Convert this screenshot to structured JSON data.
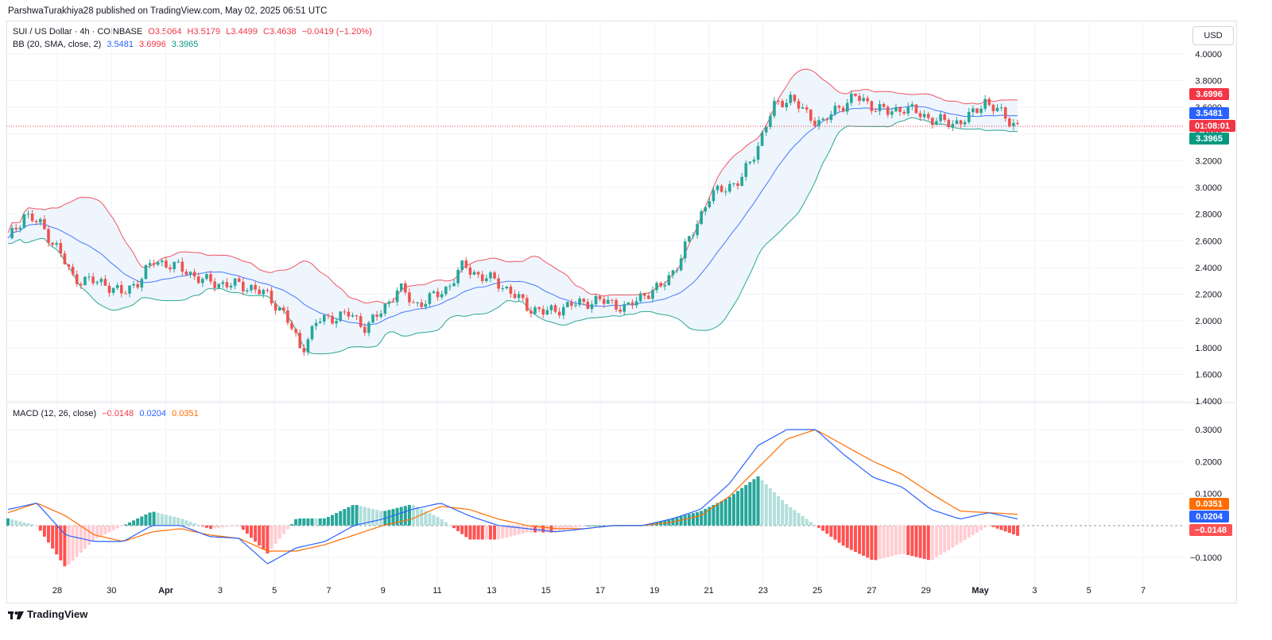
{
  "header": {
    "publisher_line": "ParshwaTurakhiya28 published on TradingView.com, May 02, 2025 06:51 UTC"
  },
  "legend": {
    "symbol": "SUI / US Dollar · 4h · COINBASE",
    "open": "O3.5064",
    "high": "H3.5179",
    "low": "L3.4499",
    "close": "C3.4638",
    "change": "−0.0419 (−1.20%)",
    "bb_label": "BB (20, SMA, close, 2)",
    "bb_basis": "3.5481",
    "bb_upper": "3.6996",
    "bb_lower": "3.3965",
    "macd_label": "MACD (12, 26, close)",
    "macd_hist": "−0.0148",
    "macd_line": "0.0204",
    "macd_signal": "0.0351"
  },
  "currency_button": "USD",
  "price_tags": {
    "upper": "3.6996",
    "basis": "3.5481",
    "countdown": "01:08:01",
    "lower": "3.3965"
  },
  "macd_tags": {
    "signal": "0.0351",
    "macd": "0.0204",
    "hist": "−0.0148"
  },
  "brand": "TradingView",
  "colors": {
    "up": "#26a69a",
    "down": "#ef5350",
    "bb_basis": "#2962ff",
    "bb_upper": "#f23645",
    "bb_lower": "#089981",
    "bb_fill": "#eef5fc",
    "macd_line": "#2962ff",
    "signal_line": "#ff6d00",
    "hist_up_strong": "#26a69a",
    "hist_up_weak": "#b2dfdb",
    "hist_down_strong": "#ff5252",
    "hist_down_weak": "#ffcdd2"
  },
  "chart_data": [
    {
      "type": "candlestick",
      "title": "SUI / US Dollar · 4h · COINBASE",
      "x_tick_labels": [
        "28",
        "30",
        "Apr",
        "3",
        "5",
        "7",
        "9",
        "11",
        "13",
        "15",
        "17",
        "19",
        "21",
        "23",
        "25",
        "27",
        "29",
        "May",
        "3",
        "5",
        "7"
      ],
      "y_tick_labels": [
        "4.0000",
        "3.8000",
        "3.6000",
        "3.4000",
        "3.2000",
        "3.0000",
        "2.8000",
        "2.6000",
        "2.4000",
        "2.2000",
        "2.0000",
        "1.8000",
        "1.6000",
        "1.4000"
      ],
      "ylim": [
        1.4,
        4.05
      ],
      "price_path": [
        [
          "28",
          2.6
        ],
        [
          "28.5",
          2.8
        ],
        [
          "29",
          2.72
        ],
        [
          "29.5",
          2.55
        ],
        [
          "30",
          2.32
        ],
        [
          "30.5",
          2.3
        ],
        [
          "31",
          2.28
        ],
        [
          "31.5",
          2.2
        ],
        [
          "Apr",
          2.3
        ],
        [
          "Apr 1.5",
          2.45
        ],
        [
          "Apr 2.5",
          2.42
        ],
        [
          "3",
          2.37
        ],
        [
          "3.5",
          2.3
        ],
        [
          "4",
          2.28
        ],
        [
          "4.5",
          2.27
        ],
        [
          "5",
          2.25
        ],
        [
          "6",
          2.18
        ],
        [
          "6.5",
          2.05
        ],
        [
          "7",
          1.78
        ],
        [
          "7.5",
          2.0
        ],
        [
          "8",
          2.03
        ],
        [
          "8.5",
          2.05
        ],
        [
          "9",
          1.95
        ],
        [
          "9.5",
          2.08
        ],
        [
          "10",
          2.25
        ],
        [
          "10.5",
          2.12
        ],
        [
          "11",
          2.17
        ],
        [
          "12",
          2.25
        ],
        [
          "13",
          2.42
        ],
        [
          "13.5",
          2.33
        ],
        [
          "14",
          2.3
        ],
        [
          "15",
          2.2
        ],
        [
          "16",
          2.1
        ],
        [
          "16.5",
          2.06
        ],
        [
          "17",
          2.1
        ],
        [
          "18",
          2.13
        ],
        [
          "19",
          2.15
        ],
        [
          "20",
          2.14
        ],
        [
          "20.5",
          2.09
        ],
        [
          "21",
          2.2
        ],
        [
          "21.5",
          2.24
        ],
        [
          "22",
          2.4
        ],
        [
          "22.5",
          2.65
        ],
        [
          "23",
          2.92
        ],
        [
          "23.5",
          3.0
        ],
        [
          "24",
          3.05
        ],
        [
          "24.5",
          3.3
        ],
        [
          "25",
          3.6
        ],
        [
          "25.5",
          3.68
        ],
        [
          "26",
          3.55
        ],
        [
          "26.5",
          3.48
        ],
        [
          "27",
          3.6
        ],
        [
          "27.5",
          3.68
        ],
        [
          "28",
          3.62
        ],
        [
          "28.5",
          3.56
        ],
        [
          "29",
          3.6
        ],
        [
          "29.5",
          3.55
        ],
        [
          "30",
          3.5
        ],
        [
          "30.5",
          3.48
        ],
        [
          "May",
          3.52
        ],
        [
          "May 1",
          3.65
        ],
        [
          "May 1.5",
          3.55
        ],
        [
          "May 2",
          3.46
        ]
      ],
      "bollinger_bands": {
        "name": "BB (20, SMA, close, 2)",
        "last": {
          "basis": 3.5481,
          "upper": 3.6996,
          "lower": 3.3965
        }
      }
    },
    {
      "type": "line",
      "title": "MACD (12, 26, close)",
      "y_tick_labels": [
        "0.3000",
        "0.2000",
        "0.1000",
        "−0.1000"
      ],
      "ylim": [
        -0.14,
        0.32
      ],
      "macd_path": [
        [
          "28",
          0.05
        ],
        [
          "29",
          0.07
        ],
        [
          "30",
          -0.03
        ],
        [
          "31",
          -0.05
        ],
        [
          "Apr",
          -0.05
        ],
        [
          "2",
          0.0
        ],
        [
          "3",
          0.0
        ],
        [
          "5",
          -0.035
        ],
        [
          "6",
          -0.04
        ],
        [
          "7",
          -0.12
        ],
        [
          "8",
          -0.07
        ],
        [
          "9",
          -0.05
        ],
        [
          "10",
          0.0
        ],
        [
          "11",
          0.02
        ],
        [
          "12",
          0.05
        ],
        [
          "13",
          0.07
        ],
        [
          "14",
          0.03
        ],
        [
          "15",
          0.0
        ],
        [
          "16",
          -0.01
        ],
        [
          "17",
          -0.02
        ],
        [
          "18",
          -0.01
        ],
        [
          "19",
          0.0
        ],
        [
          "20",
          0.0
        ],
        [
          "21",
          0.02
        ],
        [
          "22",
          0.05
        ],
        [
          "23",
          0.13
        ],
        [
          "24",
          0.25
        ],
        [
          "25",
          0.3
        ],
        [
          "26",
          0.3
        ],
        [
          "27",
          0.22
        ],
        [
          "28",
          0.15
        ],
        [
          "29",
          0.12
        ],
        [
          "30",
          0.05
        ],
        [
          "May",
          0.02
        ],
        [
          "May 1",
          0.04
        ],
        [
          "May 2",
          0.0204
        ]
      ],
      "signal_path": [
        [
          "28",
          0.04
        ],
        [
          "29",
          0.07
        ],
        [
          "30",
          0.03
        ],
        [
          "31",
          -0.03
        ],
        [
          "Apr",
          -0.05
        ],
        [
          "2",
          -0.02
        ],
        [
          "3",
          -0.01
        ],
        [
          "5",
          -0.03
        ],
        [
          "6",
          -0.04
        ],
        [
          "7",
          -0.08
        ],
        [
          "8",
          -0.08
        ],
        [
          "9",
          -0.06
        ],
        [
          "10",
          -0.03
        ],
        [
          "11",
          0.0
        ],
        [
          "12",
          0.02
        ],
        [
          "13",
          0.06
        ],
        [
          "14",
          0.05
        ],
        [
          "15",
          0.02
        ],
        [
          "16",
          0.0
        ],
        [
          "17",
          -0.01
        ],
        [
          "18",
          -0.01
        ],
        [
          "19",
          0.0
        ],
        [
          "20",
          0.0
        ],
        [
          "21",
          0.01
        ],
        [
          "22",
          0.03
        ],
        [
          "23",
          0.09
        ],
        [
          "24",
          0.18
        ],
        [
          "25",
          0.27
        ],
        [
          "26",
          0.3
        ],
        [
          "27",
          0.25
        ],
        [
          "28",
          0.2
        ],
        [
          "29",
          0.16
        ],
        [
          "30",
          0.1
        ],
        [
          "May",
          0.045
        ],
        [
          "May 1",
          0.04
        ],
        [
          "May 2",
          0.0351
        ]
      ],
      "histogram_last": -0.0148
    }
  ]
}
